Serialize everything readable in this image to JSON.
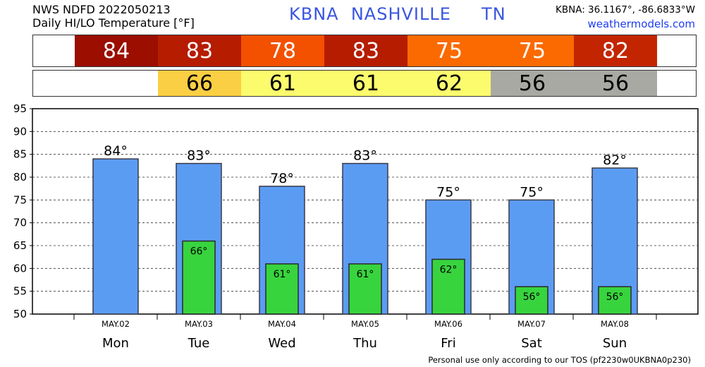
{
  "header": {
    "line1": "NWS NDFD 2022050213",
    "line2": "Daily HI/LO Temperature [°F]",
    "station": "KBNA  NASHVILLE     TN",
    "coords": "KBNA: 36.1167°, -86.6833°W",
    "site": "weathermodels.com"
  },
  "hi_strip": [
    {
      "value": "84",
      "color": "#9b0e00"
    },
    {
      "value": "83",
      "color": "#b61c00"
    },
    {
      "value": "78",
      "color": "#f35000"
    },
    {
      "value": "83",
      "color": "#b61c00"
    },
    {
      "value": "75",
      "color": "#fb6a00"
    },
    {
      "value": "75",
      "color": "#fb6a00"
    },
    {
      "value": "82",
      "color": "#c32500"
    }
  ],
  "lo_strip": [
    {
      "value": "",
      "color": "#ffffff"
    },
    {
      "value": "66",
      "color": "#fbcf43"
    },
    {
      "value": "61",
      "color": "#fcfb6e"
    },
    {
      "value": "61",
      "color": "#fcfb6e"
    },
    {
      "value": "62",
      "color": "#fcfb6e"
    },
    {
      "value": "56",
      "color": "#a9a9a4"
    },
    {
      "value": "56",
      "color": "#a9a9a4"
    }
  ],
  "chart_data": {
    "type": "bar",
    "ylim": [
      50,
      95
    ],
    "yticks": [
      50,
      55,
      60,
      65,
      70,
      75,
      80,
      85,
      90,
      95
    ],
    "grid": true,
    "dates": [
      "MAY.02",
      "MAY.03",
      "MAY.04",
      "MAY.05",
      "MAY.06",
      "MAY.07",
      "MAY.08"
    ],
    "categories": [
      "Mon",
      "Tue",
      "Wed",
      "Thu",
      "Fri",
      "Sat",
      "Sun"
    ],
    "series": [
      {
        "values": [
          84,
          83,
          78,
          83,
          75,
          75,
          82
        ],
        "color": "#5b9cf3"
      },
      {
        "values": [
          null,
          66,
          61,
          61,
          62,
          56,
          56
        ],
        "color": "#38d43e"
      }
    ],
    "hi_labels": [
      "84°",
      "83°",
      "78°",
      "83°",
      "75°",
      "75°",
      "82°"
    ],
    "lo_labels": [
      "",
      "66°",
      "61°",
      "61°",
      "62°",
      "56°",
      "56°"
    ]
  },
  "footer": "Personal use only according to our TOS (pf2230w0UKBNA0p230)"
}
